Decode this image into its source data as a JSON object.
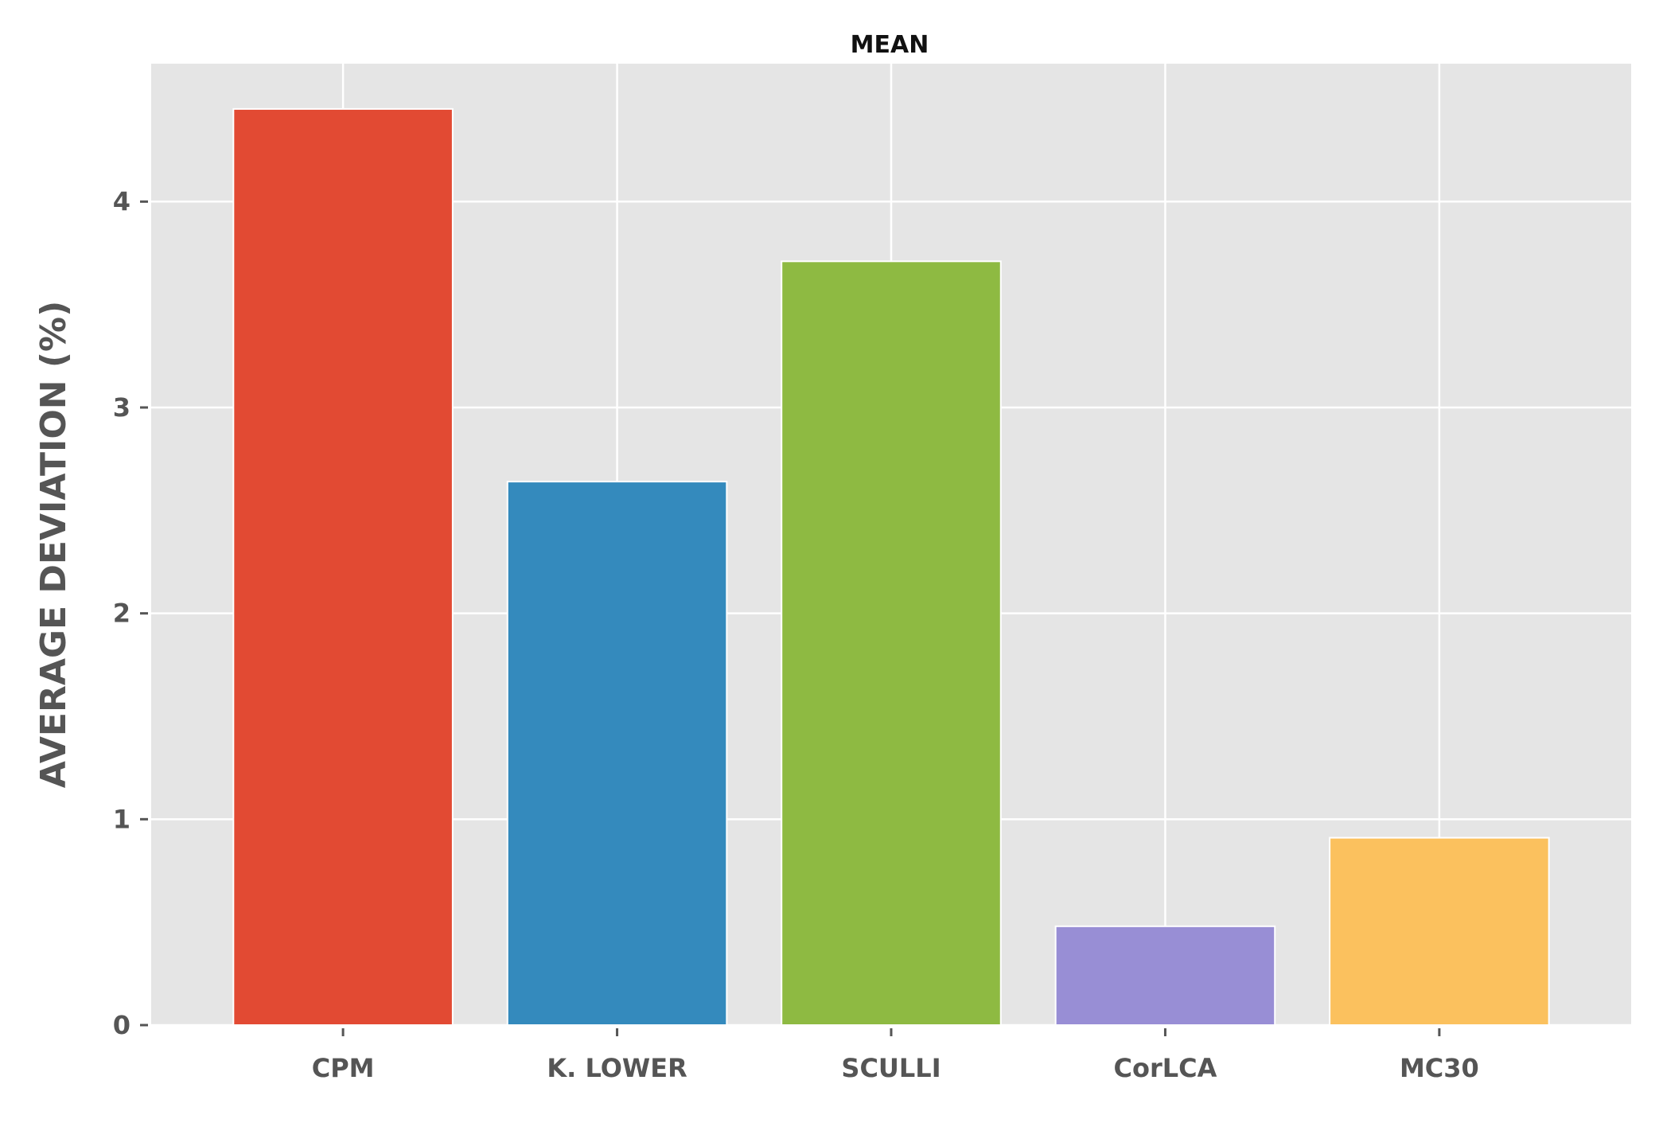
{
  "chart_data": {
    "type": "bar",
    "title": "MEAN",
    "xlabel": "",
    "ylabel": "AVERAGE DEVIATION (%)",
    "categories": [
      "CPM",
      "K. LOWER",
      "SCULLI",
      "CorLCA",
      "MC30"
    ],
    "values": [
      4.45,
      2.64,
      3.71,
      0.48,
      0.91
    ],
    "colors": [
      "#E24A33",
      "#348ABD",
      "#8EBA42",
      "#988ED5",
      "#FBC15E"
    ],
    "ylim": [
      0,
      4.67
    ],
    "yticks": [
      0,
      1,
      2,
      3,
      4
    ],
    "grid": true,
    "background": "#E5E5E5",
    "legend": "none"
  }
}
